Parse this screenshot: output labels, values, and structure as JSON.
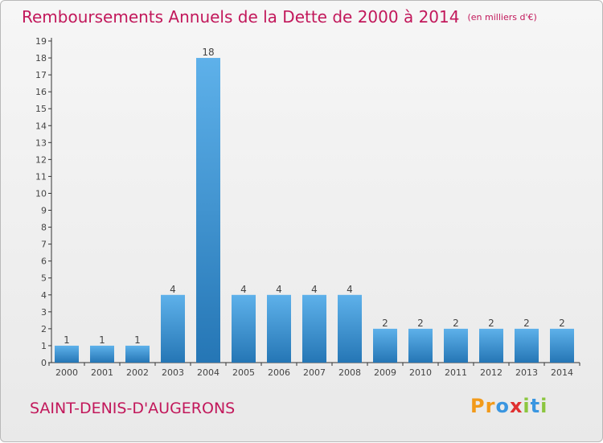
{
  "chart_data": {
    "type": "bar",
    "title": "Remboursements Annuels de la Dette de 2000 à 2014",
    "subtitle": "(en milliers d'€)",
    "categories": [
      "2000",
      "2001",
      "2002",
      "2003",
      "2004",
      "2005",
      "2006",
      "2007",
      "2008",
      "2009",
      "2010",
      "2011",
      "2012",
      "2013",
      "2014"
    ],
    "values": [
      1,
      1,
      1,
      4,
      18,
      4,
      4,
      4,
      4,
      2,
      2,
      2,
      2,
      2,
      2
    ],
    "ylim": [
      0,
      19
    ],
    "yticks": [
      0,
      1,
      2,
      3,
      4,
      5,
      6,
      7,
      8,
      9,
      10,
      11,
      12,
      13,
      14,
      15,
      16,
      17,
      18,
      19
    ],
    "grid": false,
    "colors": {
      "bar_light": "#5eb1ea",
      "bar_dark": "#2576b5",
      "title": "#c2185b"
    }
  },
  "commune": "SAINT-DENIS-D'AUGERONS",
  "logo": {
    "letters": [
      "P",
      "r",
      "o",
      "x",
      "i",
      "t",
      "i"
    ],
    "colors": [
      "#f29a1a",
      "#f29a1a",
      "#3a96e0",
      "#e03030",
      "#8cc63f",
      "#3a96e0",
      "#8cc63f"
    ]
  }
}
